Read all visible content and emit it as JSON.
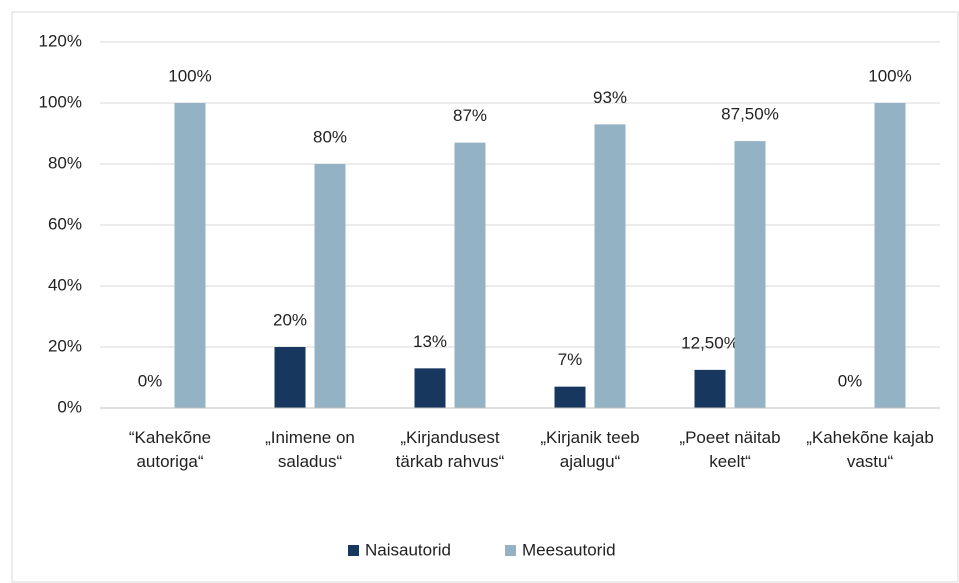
{
  "chart_data": {
    "type": "bar",
    "categories": [
      "“Kahekõne autoriga“",
      "„Inimene on saladus“",
      "„Kirjandusest tärkab rahvus“",
      "„Kirjanik teeb ajalugu“",
      "„Poeet näitab keelt“",
      "„Kahekõne kajab vastu“"
    ],
    "series": [
      {
        "name": "Naisautorid",
        "color": "#17375e",
        "values": [
          0,
          20,
          13,
          7,
          12.5,
          0
        ],
        "value_labels": [
          "0%",
          "20%",
          "13%",
          "7%",
          "12,50%",
          "0%"
        ]
      },
      {
        "name": "Meesautorid",
        "color": "#93b3c5",
        "values": [
          100,
          80,
          87,
          93,
          87.5,
          100
        ],
        "value_labels": [
          "100%",
          "80%",
          "87%",
          "93%",
          "87,50%",
          "100%"
        ]
      }
    ],
    "ylim": [
      0,
      120
    ],
    "yticks": [
      {
        "value": 0,
        "label": "0%"
      },
      {
        "value": 20,
        "label": "20%"
      },
      {
        "value": 40,
        "label": "40%"
      },
      {
        "value": 60,
        "label": "60%"
      },
      {
        "value": 80,
        "label": "80%"
      },
      {
        "value": 100,
        "label": "100%"
      },
      {
        "value": 120,
        "label": "120%"
      }
    ],
    "grid": true,
    "legend": "bottom"
  }
}
